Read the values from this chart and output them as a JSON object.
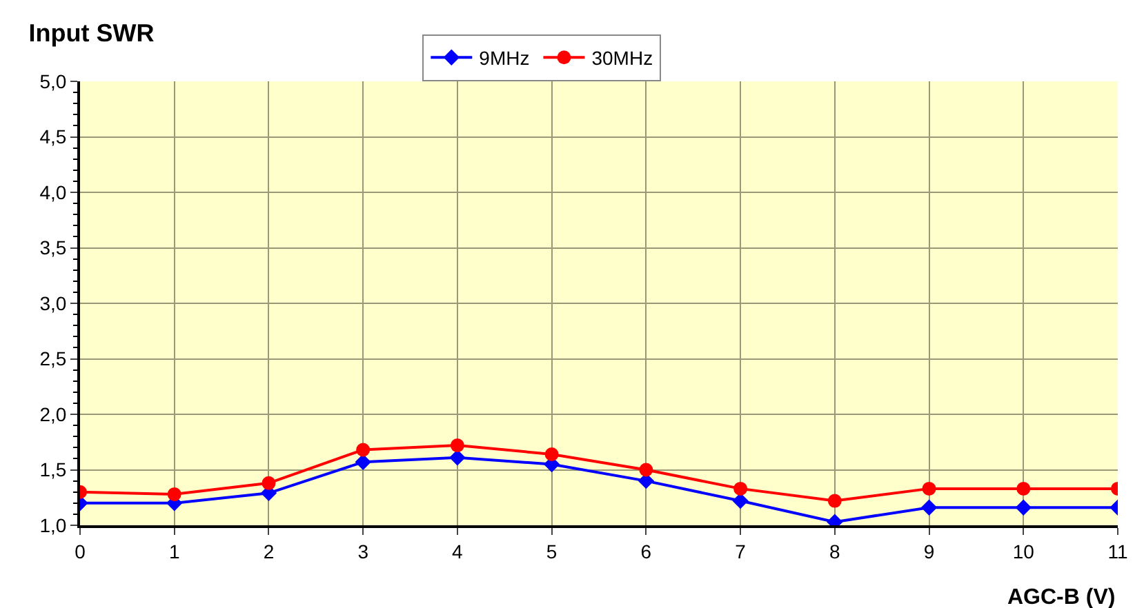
{
  "chart_data": {
    "type": "line",
    "title": "Input SWR",
    "xlabel": "AGC-B (V)",
    "x": [
      0,
      1,
      2,
      3,
      4,
      5,
      6,
      7,
      8,
      9,
      10,
      11
    ],
    "series": [
      {
        "name": "9MHz",
        "color": "#0000ff",
        "marker": "diamond",
        "values": [
          1.2,
          1.2,
          1.29,
          1.57,
          1.61,
          1.55,
          1.4,
          1.22,
          1.03,
          1.16,
          1.16,
          1.16
        ]
      },
      {
        "name": "30MHz",
        "color": "#ff0000",
        "marker": "circle",
        "values": [
          1.3,
          1.28,
          1.38,
          1.68,
          1.72,
          1.64,
          1.5,
          1.33,
          1.22,
          1.33,
          1.33,
          1.33
        ]
      }
    ],
    "xlim": [
      0,
      11
    ],
    "xticks": [
      0,
      1,
      2,
      3,
      4,
      5,
      6,
      7,
      8,
      9,
      10,
      11
    ],
    "ylim": [
      1,
      5
    ],
    "yticks": [
      {
        "value": 1,
        "label": "1,0"
      },
      {
        "value": 1.5,
        "label": "1,5"
      },
      {
        "value": 2,
        "label": "2,0"
      },
      {
        "value": 2.5,
        "label": "2,5"
      },
      {
        "value": 3,
        "label": "3,0"
      },
      {
        "value": 3.5,
        "label": "3,5"
      },
      {
        "value": 4,
        "label": "4,0"
      },
      {
        "value": 4.5,
        "label": "4,5"
      },
      {
        "value": 5,
        "label": "5,0"
      }
    ],
    "grid": true,
    "legend": "top",
    "line_style": "solid"
  }
}
